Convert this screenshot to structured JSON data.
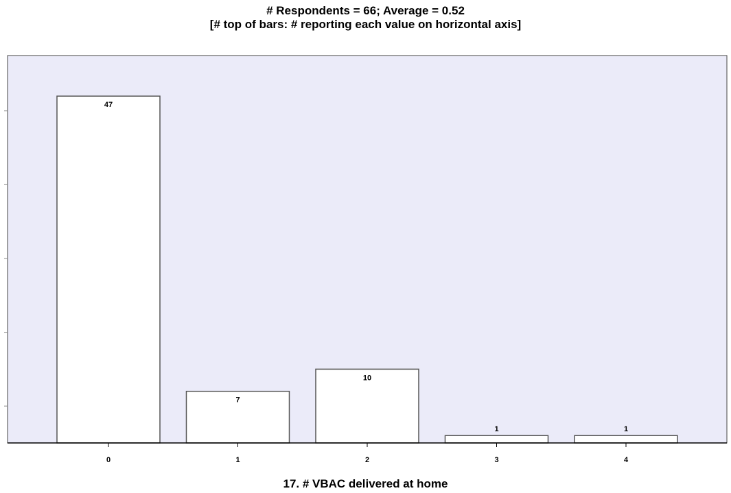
{
  "chart_data": {
    "type": "bar",
    "title": "# Respondents = 66; Average = 0.52",
    "subtitle": "[# top of bars: # reporting each value on horizontal axis]",
    "xlabel": "17. # VBAC delivered at home",
    "ylabel": "",
    "categories": [
      "0",
      "1",
      "2",
      "3",
      "4"
    ],
    "values": [
      47,
      7,
      10,
      1,
      1
    ],
    "data_labels": [
      "47",
      "7",
      "10",
      "1",
      "1"
    ],
    "ylim": [
      0,
      52.5
    ],
    "yticks": [
      5,
      15,
      25,
      35,
      45
    ],
    "y_tick_labels_shown": false,
    "grid": false,
    "legend": "none",
    "colors": {
      "plot_background": "#ebebf9",
      "bar_fill": "#ffffff",
      "bar_stroke": "#555555",
      "axis": "#000000"
    }
  }
}
